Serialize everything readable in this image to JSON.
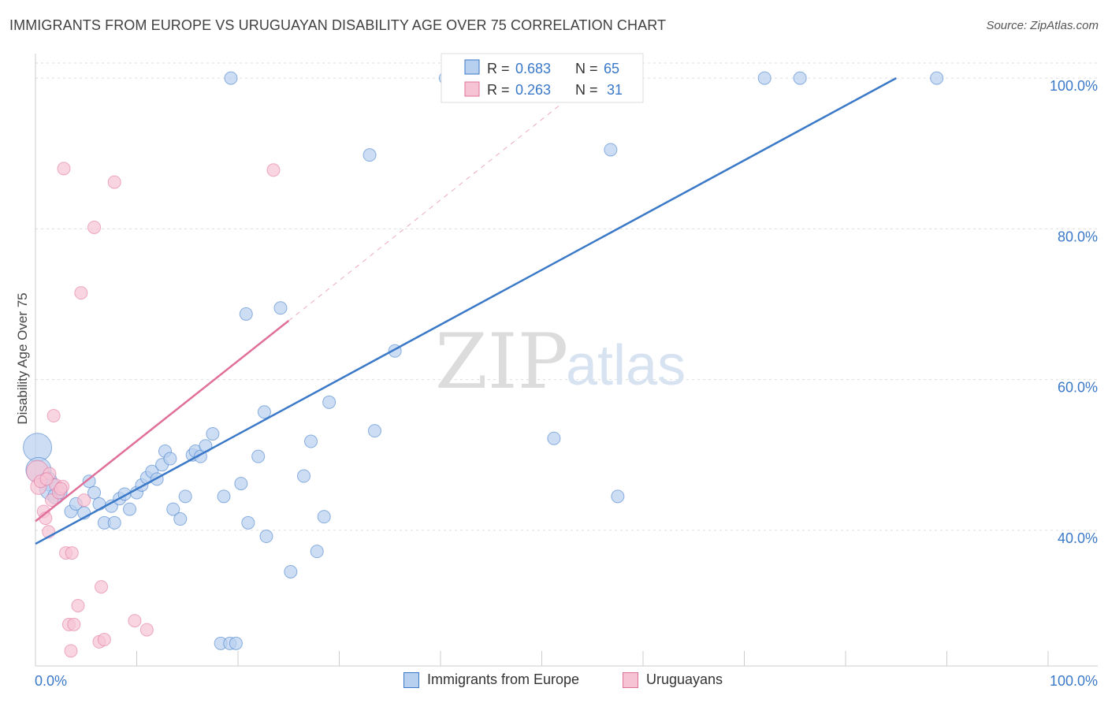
{
  "title": "IMMIGRANTS FROM EUROPE VS URUGUAYAN DISABILITY AGE OVER 75 CORRELATION CHART",
  "source": "Source: ZipAtlas.com",
  "watermark": {
    "zip": "ZIP",
    "atlas": "atlas"
  },
  "colors": {
    "blue": "#3a78c8",
    "blue_fill": "#b8d0f0",
    "pink": "#e0709a",
    "pink_fill": "#f6c3d4",
    "grid": "#dddddd",
    "axis": "#cccccc"
  },
  "legend_box": {
    "r_label": "R =",
    "n_label": "N =",
    "rows": [
      {
        "series": "Immigrants from Europe",
        "r": "0.683",
        "n": "65"
      },
      {
        "series": "Uruguayans",
        "r": "0.263",
        "n": "31"
      }
    ]
  },
  "bottom_legend": [
    "Immigrants from Europe",
    "Uruguayans"
  ],
  "chart_data": {
    "type": "scatter",
    "title": "IMMIGRANTS FROM EUROPE VS URUGUAYAN DISABILITY AGE OVER 75 CORRELATION CHART",
    "xlabel": "",
    "ylabel": "Disability Age Over 75",
    "xlim": [
      0,
      100
    ],
    "ylim": [
      22,
      102
    ],
    "x_tick_labels": [
      "0.0%",
      "100.0%"
    ],
    "y_tick_values": [
      40,
      60,
      80,
      100
    ],
    "y_tick_labels": [
      "40.0%",
      "60.0%",
      "80.0%",
      "100.0%"
    ],
    "grid": true,
    "legend_position": "top-center",
    "series": [
      {
        "name": "Immigrants from Europe",
        "color": "#3a78c8",
        "trend": {
          "x1": 0,
          "y1": 38.2,
          "x2": 85,
          "y2": 100
        },
        "points": [
          [
            0.2,
            51,
            18
          ],
          [
            0.3,
            48,
            16
          ],
          [
            1.2,
            46.5,
            12
          ],
          [
            1.5,
            45.5,
            14
          ],
          [
            2.0,
            44.5,
            10
          ],
          [
            2.5,
            45,
            8
          ],
          [
            3.5,
            42.5,
            8
          ],
          [
            4.0,
            43.5,
            8
          ],
          [
            4.8,
            42.3,
            8
          ],
          [
            5.3,
            46.5,
            8
          ],
          [
            5.8,
            45,
            8
          ],
          [
            6.3,
            43.5,
            8
          ],
          [
            6.8,
            41,
            8
          ],
          [
            7.5,
            43.2,
            8
          ],
          [
            7.8,
            41,
            8
          ],
          [
            8.3,
            44.2,
            8
          ],
          [
            8.8,
            44.8,
            8
          ],
          [
            9.3,
            42.8,
            8
          ],
          [
            10.0,
            45,
            8
          ],
          [
            10.5,
            46,
            8
          ],
          [
            11.0,
            47,
            8
          ],
          [
            11.5,
            47.8,
            8
          ],
          [
            12.0,
            46.8,
            8
          ],
          [
            12.5,
            48.7,
            8
          ],
          [
            12.8,
            50.5,
            8
          ],
          [
            13.3,
            49.5,
            8
          ],
          [
            13.6,
            42.8,
            8
          ],
          [
            14.3,
            41.5,
            8
          ],
          [
            14.8,
            44.5,
            8
          ],
          [
            15.5,
            50,
            8
          ],
          [
            15.8,
            50.5,
            8
          ],
          [
            16.3,
            49.8,
            8
          ],
          [
            16.8,
            51.2,
            8
          ],
          [
            17.5,
            52.8,
            8
          ],
          [
            18.3,
            25,
            8
          ],
          [
            18.6,
            44.5,
            8
          ],
          [
            19.2,
            25,
            8
          ],
          [
            19.3,
            100,
            8
          ],
          [
            19.8,
            25,
            8
          ],
          [
            20.3,
            46.2,
            8
          ],
          [
            20.8,
            68.7,
            8
          ],
          [
            21.0,
            41,
            8
          ],
          [
            22.0,
            49.8,
            8
          ],
          [
            22.6,
            55.7,
            8
          ],
          [
            22.8,
            39.2,
            8
          ],
          [
            24.2,
            69.5,
            8
          ],
          [
            25.2,
            34.5,
            8
          ],
          [
            26.5,
            47.2,
            8
          ],
          [
            27.2,
            51.8,
            8
          ],
          [
            27.8,
            37.2,
            8
          ],
          [
            28.5,
            41.8,
            8
          ],
          [
            29.0,
            57,
            8
          ],
          [
            33.0,
            89.8,
            8
          ],
          [
            33.5,
            53.2,
            8
          ],
          [
            35.5,
            63.8,
            8
          ],
          [
            47.5,
            100,
            8
          ],
          [
            51.2,
            52.2,
            8
          ],
          [
            56.0,
            100,
            8
          ],
          [
            56.8,
            90.5,
            8
          ],
          [
            57.5,
            44.5,
            8
          ],
          [
            72.0,
            100,
            8
          ],
          [
            75.5,
            100,
            8
          ],
          [
            89.0,
            100,
            8
          ],
          [
            40.5,
            100,
            8
          ],
          [
            41.2,
            100,
            8
          ]
        ]
      },
      {
        "name": "Uruguayans",
        "color": "#e0709a",
        "trend": {
          "x1": 0,
          "y1": 41.2,
          "x2": 25,
          "y2": 67.8
        },
        "trend_ext": {
          "x1": 25,
          "y1": 67.8,
          "x2": 57,
          "y2": 102
        },
        "points": [
          [
            0.2,
            47.8,
            14
          ],
          [
            0.3,
            45.8,
            10
          ],
          [
            0.8,
            42.5,
            8
          ],
          [
            1.0,
            41.6,
            8
          ],
          [
            1.3,
            39.8,
            8
          ],
          [
            1.4,
            47.5,
            8
          ],
          [
            1.6,
            44,
            8
          ],
          [
            1.8,
            55.2,
            8
          ],
          [
            2.0,
            46,
            8
          ],
          [
            2.3,
            45,
            8
          ],
          [
            2.7,
            45.8,
            8
          ],
          [
            2.8,
            88,
            8
          ],
          [
            3.0,
            37,
            8
          ],
          [
            3.3,
            27.5,
            8
          ],
          [
            3.5,
            24,
            8
          ],
          [
            3.6,
            37,
            8
          ],
          [
            3.8,
            27.5,
            8
          ],
          [
            4.2,
            30,
            8
          ],
          [
            4.5,
            71.5,
            8
          ],
          [
            4.8,
            44,
            8
          ],
          [
            5.8,
            80.2,
            8
          ],
          [
            6.3,
            25.2,
            8
          ],
          [
            6.5,
            32.5,
            8
          ],
          [
            6.8,
            25.5,
            8
          ],
          [
            7.8,
            86.2,
            8
          ],
          [
            9.8,
            28,
            8
          ],
          [
            11.0,
            26.8,
            8
          ],
          [
            23.5,
            87.8,
            8
          ],
          [
            0.5,
            46.5,
            8
          ],
          [
            1.1,
            46.8,
            8
          ],
          [
            2.5,
            45.5,
            8
          ]
        ]
      }
    ]
  }
}
